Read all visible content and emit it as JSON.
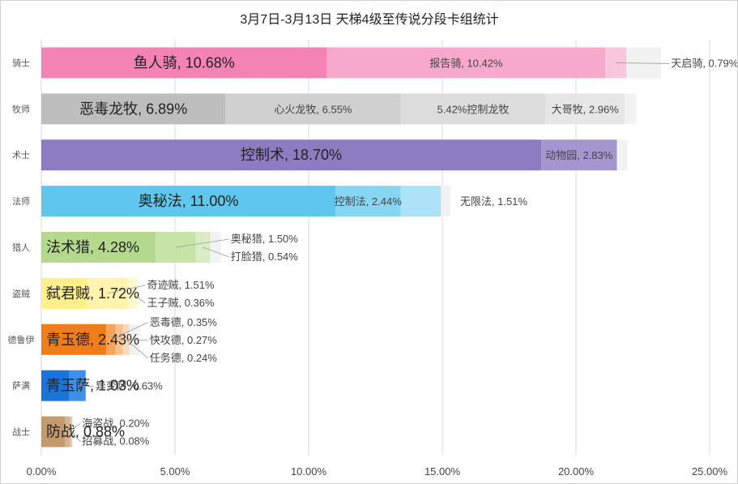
{
  "chart_data": {
    "type": "bar",
    "orientation": "horizontal-stacked",
    "title": "3月7日-3月13日 天梯4级至传说分段卡组统计",
    "xlim": [
      0,
      25
    ],
    "xticks": [
      "0.00%",
      "5.00%",
      "10.00%",
      "15.00%",
      "20.00%",
      "25.00%"
    ],
    "grid": true,
    "categories": [
      {
        "name": "骑士",
        "segments": [
          {
            "label": "鱼人骑",
            "value": 10.68,
            "display": "鱼人骑, 10.68%",
            "color": "#f383b4",
            "major": true
          },
          {
            "label": "报告骑",
            "value": 10.42,
            "display": "报告骑, 10.42%",
            "color": "#f6a9ca"
          },
          {
            "label": "天启骑",
            "value": 0.79,
            "display": "天启骑, 0.79%",
            "color": "#f9c6dc"
          }
        ],
        "other": 1.3
      },
      {
        "name": "牧师",
        "segments": [
          {
            "label": "恶毒龙牧",
            "value": 6.89,
            "display": "恶毒龙牧, 6.89%",
            "color": "#bdbdbd",
            "major": true
          },
          {
            "label": "心火龙牧",
            "value": 6.55,
            "display": "心火龙牧, 6.55%",
            "color": "#d0d0d0"
          },
          {
            "label": "控制龙牧",
            "value": 5.42,
            "display": "5.42%控制龙牧",
            "color": "#dcdcdc"
          },
          {
            "label": "大哥牧",
            "value": 2.96,
            "display": "大哥牧, 2.96%",
            "color": "#e6e6e6"
          }
        ],
        "other": 0.43
      },
      {
        "name": "术士",
        "segments": [
          {
            "label": "控制术",
            "value": 18.7,
            "display": "控制术, 18.70%",
            "color": "#8e7cc3",
            "major": true
          },
          {
            "label": "动物园",
            "value": 2.83,
            "display": "动物园, 2.83%",
            "color": "#a596d0"
          }
        ],
        "other": 0.4
      },
      {
        "name": "法师",
        "segments": [
          {
            "label": "奥秘法",
            "value": 11.0,
            "display": "奥秘法, 11.00%",
            "color": "#5fc7ee",
            "major": true
          },
          {
            "label": "控制法",
            "value": 2.44,
            "display": "控制法, 2.44%",
            "color": "#86d6f3"
          },
          {
            "label": "无限法",
            "value": 1.51,
            "display": "无限法, 1.51%",
            "color": "#acE3f7"
          }
        ],
        "other": 0.35
      },
      {
        "name": "猎人",
        "segments": [
          {
            "label": "法术猎",
            "value": 4.28,
            "display": "法术猎, 4.28%",
            "color": "#b4d88c",
            "major": true
          },
          {
            "label": "奥秘猎",
            "value": 1.5,
            "display": "奥秘猎, 1.50%",
            "color": "#c8e3a8"
          },
          {
            "label": "打脸猎",
            "value": 0.54,
            "display": "打脸猎, 0.54%",
            "color": "#d9ecc4"
          }
        ],
        "other": 0.4
      },
      {
        "name": "盗贼",
        "segments": [
          {
            "label": "弑君贼",
            "value": 1.72,
            "display": "弑君贼, 1.72%",
            "color": "#ffef8a",
            "major": true
          },
          {
            "label": "奇迹贼",
            "value": 1.51,
            "display": "奇迹贼, 1.51%",
            "color": "#fff4ad"
          },
          {
            "label": "王子贼",
            "value": 0.36,
            "display": "王子贼, 0.36%",
            "color": "#fff8cc"
          }
        ],
        "other": 0.0
      },
      {
        "name": "德鲁伊",
        "segments": [
          {
            "label": "青玉德",
            "value": 2.43,
            "display": "青玉德, 2.43%",
            "color": "#f07d1c",
            "major": true
          },
          {
            "label": "恶毒德",
            "value": 0.35,
            "display": "恶毒德, 0.35%",
            "color": "#f5a35d"
          },
          {
            "label": "快攻德",
            "value": 0.27,
            "display": "快攻德, 0.27%",
            "color": "#f8c08c"
          },
          {
            "label": "任务德",
            "value": 0.24,
            "display": "任务德, 0.24%",
            "color": "#fbd9b8"
          }
        ],
        "other": 0.4
      },
      {
        "name": "萨满",
        "segments": [
          {
            "label": "青玉萨",
            "value": 1.03,
            "display": "青玉萨, 1.03%",
            "color": "#1a73d9",
            "major": true
          },
          {
            "label": "异变萨",
            "value": 0.63,
            "display": "异变萨, 0.63%",
            "color": "#3f8fe6"
          }
        ],
        "other": 0.0
      },
      {
        "name": "战士",
        "segments": [
          {
            "label": "防战",
            "value": 0.88,
            "display": "防战, 0.88%",
            "color": "#c49a6c",
            "major": true
          },
          {
            "label": "海盗战",
            "value": 0.2,
            "display": "海盗战, 0.20%",
            "color": "#d4b38f"
          },
          {
            "label": "招募战",
            "value": 0.08,
            "display": "招募战, 0.08%",
            "color": "#e2ccb4"
          }
        ],
        "other": 0.0
      }
    ]
  }
}
